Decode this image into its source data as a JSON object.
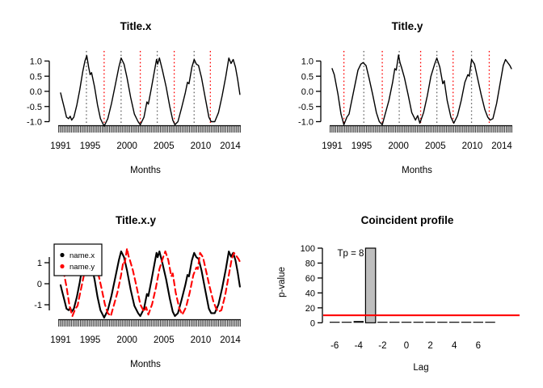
{
  "figure": {
    "background": "#ffffff"
  },
  "colors": {
    "series_x": "#000000",
    "series_y": "#ff0000",
    "peak_line": "#666666",
    "trough_line": "#ff0000",
    "significance_line": "#ff0000",
    "bar_fill": "#bebebe",
    "small_bar_fill": "#1a1a1a",
    "axis": "#000000",
    "legend_bg": "#ffffff"
  },
  "chart_data": [
    {
      "id": "title_x",
      "type": "line",
      "title": "Title.x",
      "xlabel": "Months",
      "x_ticks": [
        "1991",
        "1995",
        "2000",
        "2005",
        "2010",
        "2014"
      ],
      "x_tick_years": [
        1991,
        1995,
        2000,
        2005,
        2010,
        2014
      ],
      "y_ticks": [
        1.0,
        0.5,
        0.0,
        -0.5,
        -1.0
      ],
      "y_tick_labels": [
        "1.0",
        "0.5",
        "0.0",
        "-0.5",
        "-1.0"
      ],
      "ylim": [
        -1.2,
        1.25
      ],
      "xlim": [
        1990.7,
        2015.5
      ],
      "rug": {
        "start": 1991.0,
        "end": 2015.33,
        "interval": "monthly"
      },
      "peak_lines": [
        1994.5,
        1999.2,
        2004.1,
        2009.1
      ],
      "trough_lines": [
        1996.9,
        2001.8,
        2006.4,
        2011.3
      ],
      "series": [
        {
          "name": "x",
          "color": "#000000",
          "dash": "solid",
          "points": [
            [
              1991.0,
              -0.05
            ],
            [
              1991.2,
              -0.25
            ],
            [
              1991.5,
              -0.55
            ],
            [
              1991.8,
              -0.85
            ],
            [
              1992.1,
              -0.9
            ],
            [
              1992.3,
              -0.82
            ],
            [
              1992.5,
              -0.95
            ],
            [
              1992.8,
              -0.85
            ],
            [
              1993.2,
              -0.45
            ],
            [
              1993.6,
              0.05
            ],
            [
              1994.0,
              0.65
            ],
            [
              1994.3,
              1.0
            ],
            [
              1994.55,
              1.18
            ],
            [
              1994.8,
              0.8
            ],
            [
              1995.0,
              0.55
            ],
            [
              1995.2,
              0.62
            ],
            [
              1995.6,
              0.15
            ],
            [
              1996.0,
              -0.45
            ],
            [
              1996.4,
              -0.9
            ],
            [
              1996.9,
              -1.15
            ],
            [
              1997.4,
              -0.9
            ],
            [
              1997.9,
              -0.4
            ],
            [
              1998.4,
              0.2
            ],
            [
              1998.9,
              0.8
            ],
            [
              1999.2,
              1.1
            ],
            [
              1999.6,
              0.9
            ],
            [
              2000.0,
              0.45
            ],
            [
              2000.5,
              -0.2
            ],
            [
              2001.0,
              -0.75
            ],
            [
              2001.5,
              -1.0
            ],
            [
              2001.8,
              -1.1
            ],
            [
              2002.3,
              -0.85
            ],
            [
              2002.7,
              -0.35
            ],
            [
              2002.9,
              -0.42
            ],
            [
              2003.3,
              0.1
            ],
            [
              2003.7,
              0.65
            ],
            [
              2004.0,
              1.05
            ],
            [
              2004.15,
              0.9
            ],
            [
              2004.4,
              1.1
            ],
            [
              2004.8,
              0.7
            ],
            [
              2005.3,
              0.15
            ],
            [
              2005.8,
              -0.5
            ],
            [
              2006.2,
              -0.95
            ],
            [
              2006.5,
              -1.1
            ],
            [
              2006.9,
              -1.0
            ],
            [
              2007.4,
              -0.55
            ],
            [
              2007.9,
              -0.05
            ],
            [
              2008.2,
              0.3
            ],
            [
              2008.4,
              0.25
            ],
            [
              2008.8,
              0.8
            ],
            [
              2009.1,
              1.05
            ],
            [
              2009.4,
              0.9
            ],
            [
              2009.7,
              0.85
            ],
            [
              2010.1,
              0.45
            ],
            [
              2010.6,
              -0.2
            ],
            [
              2011.1,
              -0.85
            ],
            [
              2011.4,
              -1.0
            ],
            [
              2011.9,
              -1.0
            ],
            [
              2012.4,
              -0.7
            ],
            [
              2012.9,
              -0.15
            ],
            [
              2013.4,
              0.5
            ],
            [
              2013.8,
              1.1
            ],
            [
              2014.1,
              0.92
            ],
            [
              2014.4,
              1.05
            ],
            [
              2014.7,
              0.8
            ],
            [
              2015.0,
              0.4
            ],
            [
              2015.3,
              -0.1
            ]
          ]
        }
      ]
    },
    {
      "id": "title_y",
      "type": "line",
      "title": "Title.y",
      "xlabel": "Months",
      "x_ticks": [
        "1991",
        "1995",
        "2000",
        "2005",
        "2010",
        "2014"
      ],
      "x_tick_years": [
        1991,
        1995,
        2000,
        2005,
        2010,
        2014
      ],
      "y_ticks": [
        1.0,
        0.5,
        0.0,
        -0.5,
        -1.0
      ],
      "y_tick_labels": [
        "1.0",
        "0.5",
        "0.0",
        "-0.5",
        "-1.0"
      ],
      "ylim": [
        -1.2,
        1.25
      ],
      "xlim": [
        1990.7,
        2015.5
      ],
      "rug": {
        "start": 1991.0,
        "end": 2015.33,
        "interval": "monthly"
      },
      "peak_lines": [
        1995.3,
        2000.1,
        2005.2,
        2009.9
      ],
      "trough_lines": [
        1992.6,
        1997.8,
        2003.0,
        2007.4,
        2012.3
      ],
      "series": [
        {
          "name": "y",
          "color": "#000000",
          "dash": "solid",
          "points": [
            [
              1991.0,
              0.75
            ],
            [
              1991.3,
              0.55
            ],
            [
              1991.8,
              -0.1
            ],
            [
              1992.2,
              -0.75
            ],
            [
              1992.6,
              -1.1
            ],
            [
              1993.0,
              -0.85
            ],
            [
              1993.3,
              -0.75
            ],
            [
              1993.5,
              -0.5
            ],
            [
              1994.0,
              0.1
            ],
            [
              1994.5,
              0.7
            ],
            [
              1994.9,
              0.9
            ],
            [
              1995.2,
              0.95
            ],
            [
              1995.6,
              0.85
            ],
            [
              1996.0,
              0.45
            ],
            [
              1996.5,
              -0.1
            ],
            [
              1997.0,
              -0.7
            ],
            [
              1997.4,
              -1.0
            ],
            [
              1997.8,
              -1.1
            ],
            [
              1998.2,
              -0.75
            ],
            [
              1998.7,
              -0.3
            ],
            [
              1999.2,
              0.3
            ],
            [
              1999.5,
              0.75
            ],
            [
              1999.7,
              0.7
            ],
            [
              2000.0,
              1.2
            ],
            [
              2000.2,
              0.95
            ],
            [
              2000.4,
              0.8
            ],
            [
              2000.8,
              0.45
            ],
            [
              2001.3,
              -0.1
            ],
            [
              2001.8,
              -0.7
            ],
            [
              2002.3,
              -0.95
            ],
            [
              2002.6,
              -0.8
            ],
            [
              2002.9,
              -1.05
            ],
            [
              2003.4,
              -0.7
            ],
            [
              2003.9,
              -0.15
            ],
            [
              2004.4,
              0.5
            ],
            [
              2004.9,
              0.9
            ],
            [
              2005.2,
              1.1
            ],
            [
              2005.6,
              0.8
            ],
            [
              2006.0,
              0.25
            ],
            [
              2006.2,
              0.35
            ],
            [
              2006.6,
              -0.3
            ],
            [
              2007.1,
              -0.85
            ],
            [
              2007.5,
              -1.05
            ],
            [
              2008.0,
              -0.8
            ],
            [
              2008.5,
              -0.3
            ],
            [
              2009.0,
              0.3
            ],
            [
              2009.4,
              0.55
            ],
            [
              2009.6,
              0.5
            ],
            [
              2009.9,
              1.05
            ],
            [
              2010.3,
              0.9
            ],
            [
              2010.7,
              0.45
            ],
            [
              2011.2,
              -0.1
            ],
            [
              2011.7,
              -0.6
            ],
            [
              2012.1,
              -0.85
            ],
            [
              2012.4,
              -0.95
            ],
            [
              2012.8,
              -0.9
            ],
            [
              2013.3,
              -0.4
            ],
            [
              2013.8,
              0.3
            ],
            [
              2014.2,
              0.85
            ],
            [
              2014.5,
              1.05
            ],
            [
              2014.8,
              0.95
            ],
            [
              2015.1,
              0.85
            ],
            [
              2015.3,
              0.75
            ]
          ]
        }
      ]
    },
    {
      "id": "title_xy",
      "type": "line",
      "title": "Title.x.y",
      "xlabel": "Months",
      "x_ticks": [
        "1991",
        "1995",
        "2000",
        "2005",
        "2010",
        "2014"
      ],
      "x_tick_years": [
        1991,
        1995,
        2000,
        2005,
        2010,
        2014
      ],
      "y_ticks": [
        1,
        0,
        -1
      ],
      "y_tick_labels": [
        "1",
        "0",
        "-1"
      ],
      "ylim": [
        -1.75,
        1.75
      ],
      "xlim": [
        1990.7,
        2015.5
      ],
      "rug": {
        "start": 1991.0,
        "end": 2015.33,
        "interval": "monthly"
      },
      "scale": 1.4,
      "legend": [
        {
          "label": "name.x",
          "color": "#000000",
          "marker": "dot",
          "line": "solid"
        },
        {
          "label": "name.y",
          "color": "#ff0000",
          "marker": "dot",
          "line": "dashed"
        }
      ],
      "series_sources": [
        {
          "from_chart": 0,
          "series": 0,
          "color": "#000000",
          "dash": "solid"
        },
        {
          "from_chart": 1,
          "series": 0,
          "color": "#ff0000",
          "dash": "dashed"
        }
      ]
    },
    {
      "id": "coincident_profile",
      "type": "bar",
      "title": "Coincident profile",
      "xlabel": "Lag",
      "ylabel": "p-value",
      "categories": [
        -6,
        -5,
        -4,
        -3,
        -2,
        -1,
        0,
        1,
        2,
        3,
        4,
        5,
        6,
        7
      ],
      "values": [
        1,
        1,
        2,
        100,
        1,
        1,
        1,
        1,
        1,
        1,
        1,
        1,
        1,
        1
      ],
      "highlight": {
        "lag": -3,
        "value": 100
      },
      "x_tick_labels": [
        "-6",
        "-4",
        "-2",
        "0",
        "2",
        "4",
        "6"
      ],
      "x_tick_lags": [
        -6,
        -4,
        -2,
        0,
        2,
        4,
        6
      ],
      "y_ticks": [
        0,
        20,
        40,
        60,
        80,
        100
      ],
      "y_tick_labels": [
        "0",
        "20",
        "40",
        "60",
        "80",
        "100"
      ],
      "ylim": [
        0,
        100
      ],
      "significance_line": 10,
      "annotation": {
        "text": "Tp = 8",
        "x": -5,
        "y": 88
      }
    }
  ]
}
